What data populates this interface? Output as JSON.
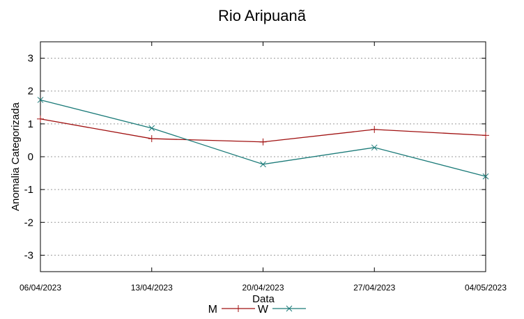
{
  "chart_data": {
    "type": "line",
    "title": "Rio Aripuanã",
    "xlabel": "Data",
    "ylabel": "Anomalia Categorizada",
    "categories": [
      "06/04/2023",
      "13/04/2023",
      "20/04/2023",
      "27/04/2023",
      "04/05/2023"
    ],
    "ylim": [
      -3.5,
      3.5
    ],
    "yticks": [
      3,
      2,
      1,
      0,
      -1,
      -2,
      -3
    ],
    "grid": true,
    "legend": "bottom-center",
    "series": [
      {
        "name": "M",
        "values": [
          1.15,
          0.55,
          0.45,
          0.83,
          0.65
        ],
        "color": "#a01010",
        "marker": "plus"
      },
      {
        "name": "W",
        "values": [
          1.73,
          0.87,
          -0.23,
          0.28,
          -0.6
        ],
        "color": "#1a7a78",
        "marker": "cross"
      }
    ]
  }
}
